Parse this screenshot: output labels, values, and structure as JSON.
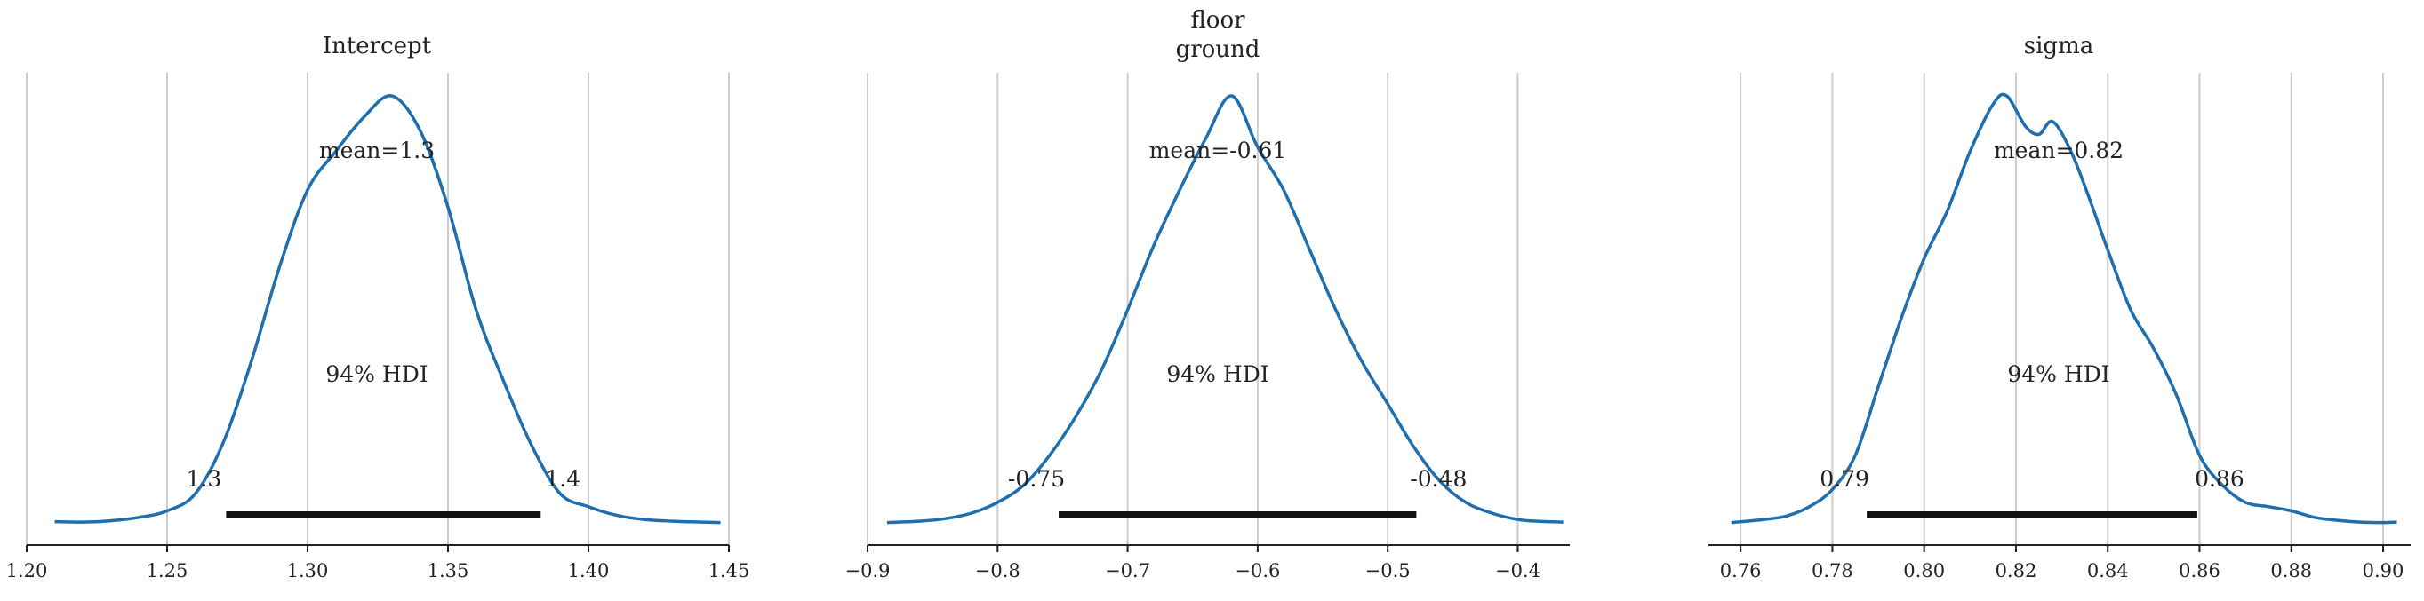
{
  "chart_data": [
    {
      "type": "area",
      "title": "Intercept",
      "xlim": [
        1.2,
        1.45
      ],
      "xticks": [
        1.2,
        1.25,
        1.3,
        1.35,
        1.4,
        1.45
      ],
      "xtick_labels": [
        "1.20",
        "1.25",
        "1.30",
        "1.35",
        "1.40",
        "1.45"
      ],
      "grid": true,
      "mean_label": "mean=1.3",
      "hdi_label": "94% HDI",
      "hdi": [
        1.271,
        1.383
      ],
      "hdi_low_label": "1.3",
      "hdi_high_label": "1.4",
      "density": {
        "x": [
          1.21,
          1.22,
          1.23,
          1.24,
          1.25,
          1.26,
          1.27,
          1.28,
          1.29,
          1.3,
          1.31,
          1.32,
          1.33,
          1.34,
          1.35,
          1.36,
          1.37,
          1.38,
          1.39,
          1.4,
          1.41,
          1.42,
          1.43,
          1.44,
          1.447
        ],
        "y": [
          0.005,
          0.004,
          0.007,
          0.015,
          0.03,
          0.07,
          0.19,
          0.38,
          0.6,
          0.78,
          0.87,
          0.95,
          1.0,
          0.92,
          0.74,
          0.5,
          0.33,
          0.18,
          0.07,
          0.04,
          0.02,
          0.01,
          0.006,
          0.004,
          0.003
        ]
      }
    },
    {
      "type": "area",
      "title": "floor\nground",
      "xlim": [
        -0.9,
        -0.36
      ],
      "xticks": [
        -0.9,
        -0.8,
        -0.7,
        -0.6,
        -0.5,
        -0.4
      ],
      "xtick_labels": [
        "−0.9",
        "−0.8",
        "−0.7",
        "−0.6",
        "−0.5",
        "−0.4"
      ],
      "grid": true,
      "mean_label": "mean=-0.61",
      "hdi_label": "94% HDI",
      "hdi": [
        -0.753,
        -0.478
      ],
      "hdi_low_label": "-0.75",
      "hdi_high_label": "-0.48",
      "density": {
        "x": [
          -0.885,
          -0.86,
          -0.84,
          -0.82,
          -0.8,
          -0.78,
          -0.76,
          -0.74,
          -0.72,
          -0.7,
          -0.68,
          -0.66,
          -0.64,
          -0.62,
          -0.6,
          -0.58,
          -0.56,
          -0.54,
          -0.52,
          -0.5,
          -0.48,
          -0.46,
          -0.44,
          -0.42,
          -0.4,
          -0.385,
          -0.365
        ],
        "y": [
          0.003,
          0.006,
          0.012,
          0.025,
          0.05,
          0.09,
          0.16,
          0.25,
          0.36,
          0.5,
          0.65,
          0.78,
          0.9,
          1.0,
          0.88,
          0.78,
          0.64,
          0.5,
          0.38,
          0.28,
          0.18,
          0.1,
          0.05,
          0.025,
          0.01,
          0.006,
          0.004
        ]
      }
    },
    {
      "type": "area",
      "title": "sigma",
      "xlim": [
        0.753,
        0.906
      ],
      "xticks": [
        0.76,
        0.78,
        0.8,
        0.82,
        0.84,
        0.86,
        0.88,
        0.9
      ],
      "xtick_labels": [
        "0.76",
        "0.78",
        "0.80",
        "0.82",
        "0.84",
        "0.86",
        "0.88",
        "0.90"
      ],
      "grid": true,
      "mean_label": "mean=0.82",
      "hdi_label": "94% HDI",
      "hdi": [
        0.7875,
        0.8595
      ],
      "hdi_low_label": "0.79",
      "hdi_high_label": "0.86",
      "density": {
        "x": [
          0.758,
          0.765,
          0.77,
          0.775,
          0.78,
          0.785,
          0.79,
          0.795,
          0.8,
          0.805,
          0.81,
          0.815,
          0.818,
          0.822,
          0.825,
          0.828,
          0.832,
          0.836,
          0.84,
          0.845,
          0.85,
          0.855,
          0.86,
          0.865,
          0.87,
          0.875,
          0.88,
          0.885,
          0.89,
          0.895,
          0.9,
          0.903
        ],
        "y": [
          0.003,
          0.01,
          0.018,
          0.04,
          0.08,
          0.16,
          0.32,
          0.48,
          0.62,
          0.73,
          0.87,
          0.98,
          1.0,
          0.93,
          0.91,
          0.94,
          0.87,
          0.76,
          0.64,
          0.5,
          0.41,
          0.3,
          0.16,
          0.09,
          0.05,
          0.04,
          0.03,
          0.015,
          0.008,
          0.004,
          0.003,
          0.004
        ]
      }
    }
  ],
  "colors": {
    "density_line": "#1f6faf",
    "hdi_bar": "#111111",
    "grid": "#cccccc"
  }
}
